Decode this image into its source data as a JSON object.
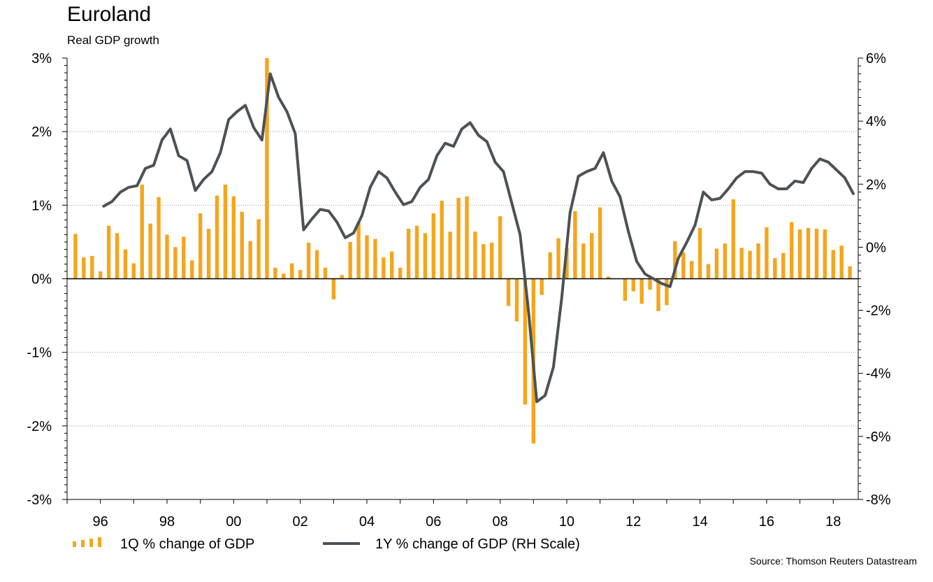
{
  "title": "Euroland",
  "subtitle": "Real GDP growth",
  "source": "Source: Thomson Reuters Datastream",
  "colors": {
    "bar": "#F5A51C",
    "line": "#4B5257",
    "grid": "#9A9A9A"
  },
  "chart_data": {
    "type": "bar+line",
    "title": "Euroland",
    "subtitle": "Real GDP growth",
    "x_range": [
      1995.0,
      2018.75
    ],
    "x_tick_values": [
      1996,
      1998,
      2000,
      2002,
      2004,
      2006,
      2008,
      2010,
      2012,
      2014,
      2016,
      2018
    ],
    "x_tick_labels": [
      "96",
      "98",
      "00",
      "02",
      "04",
      "06",
      "08",
      "10",
      "12",
      "14",
      "16",
      "18"
    ],
    "y_left_range": [
      -3,
      3
    ],
    "y_left_ticks": [
      "3%",
      "2%",
      "1%",
      "0%",
      "-1%",
      "-2%",
      "-3%"
    ],
    "y_right_range": [
      -8,
      6
    ],
    "y_right_ticks": [
      "6%",
      "4%",
      "2%",
      "0%",
      "-2%",
      "-4%",
      "-6%",
      "-8%"
    ],
    "grid": true,
    "legend_placement": "bottom-left",
    "series": [
      {
        "name": "1Q % change of GDP",
        "type": "bar",
        "axis": "left",
        "start": 1995.25,
        "step": 0.25,
        "values": [
          0.61,
          0.29,
          0.31,
          0.1,
          0.72,
          0.62,
          0.4,
          0.21,
          1.28,
          0.75,
          1.11,
          0.6,
          0.43,
          0.57,
          0.25,
          0.89,
          0.68,
          1.13,
          1.28,
          1.12,
          0.91,
          0.51,
          0.81,
          3.0,
          0.15,
          0.07,
          0.21,
          0.12,
          0.49,
          0.39,
          0.15,
          -0.28,
          0.05,
          0.5,
          0.77,
          0.59,
          0.54,
          0.29,
          0.37,
          0.15,
          0.68,
          0.72,
          0.62,
          0.89,
          1.06,
          0.64,
          1.1,
          1.12,
          0.64,
          0.47,
          0.49,
          0.85,
          -0.37,
          -0.58,
          -1.71,
          -2.24,
          -0.22,
          0.36,
          0.55,
          0.42,
          0.92,
          0.48,
          0.62,
          0.97,
          0.03,
          0.0,
          -0.3,
          -0.17,
          -0.34,
          -0.15,
          -0.44,
          -0.36,
          0.51,
          0.36,
          0.24,
          0.69,
          0.2,
          0.41,
          0.48,
          1.08,
          0.42,
          0.38,
          0.48,
          0.7,
          0.28,
          0.35,
          0.77,
          0.67,
          0.69,
          0.68,
          0.67,
          0.39,
          0.45,
          0.17
        ]
      },
      {
        "name": "1Y % change of GDP (RH Scale)",
        "type": "line",
        "axis": "right",
        "points": [
          [
            1996.1,
            1.3
          ],
          [
            1996.35,
            1.45
          ],
          [
            1996.6,
            1.75
          ],
          [
            1996.85,
            1.9
          ],
          [
            1997.1,
            1.95
          ],
          [
            1997.35,
            2.5
          ],
          [
            1997.6,
            2.6
          ],
          [
            1997.85,
            3.4
          ],
          [
            1998.1,
            3.75
          ],
          [
            1998.35,
            2.9
          ],
          [
            1998.6,
            2.75
          ],
          [
            1998.85,
            1.8
          ],
          [
            1999.1,
            2.15
          ],
          [
            1999.35,
            2.4
          ],
          [
            1999.6,
            3.0
          ],
          [
            1999.85,
            4.05
          ],
          [
            2000.1,
            4.3
          ],
          [
            2000.35,
            4.5
          ],
          [
            2000.6,
            3.8
          ],
          [
            2000.85,
            3.4
          ],
          [
            2001.1,
            5.5
          ],
          [
            2001.35,
            4.75
          ],
          [
            2001.6,
            4.3
          ],
          [
            2001.85,
            3.6
          ],
          [
            2002.1,
            0.55
          ],
          [
            2002.35,
            0.9
          ],
          [
            2002.6,
            1.2
          ],
          [
            2002.85,
            1.15
          ],
          [
            2003.1,
            0.8
          ],
          [
            2003.35,
            0.3
          ],
          [
            2003.6,
            0.45
          ],
          [
            2003.85,
            1.0
          ],
          [
            2004.1,
            1.9
          ],
          [
            2004.35,
            2.4
          ],
          [
            2004.6,
            2.2
          ],
          [
            2004.85,
            1.75
          ],
          [
            2005.1,
            1.35
          ],
          [
            2005.35,
            1.45
          ],
          [
            2005.6,
            1.9
          ],
          [
            2005.85,
            2.15
          ],
          [
            2006.1,
            2.9
          ],
          [
            2006.35,
            3.3
          ],
          [
            2006.6,
            3.2
          ],
          [
            2006.85,
            3.75
          ],
          [
            2007.1,
            3.95
          ],
          [
            2007.35,
            3.55
          ],
          [
            2007.6,
            3.35
          ],
          [
            2007.85,
            2.7
          ],
          [
            2008.1,
            2.4
          ],
          [
            2008.35,
            1.4
          ],
          [
            2008.6,
            0.4
          ],
          [
            2008.85,
            -2.0
          ],
          [
            2009.1,
            -4.9
          ],
          [
            2009.35,
            -4.7
          ],
          [
            2009.6,
            -3.8
          ],
          [
            2009.85,
            -1.6
          ],
          [
            2010.1,
            1.1
          ],
          [
            2010.35,
            2.25
          ],
          [
            2010.6,
            2.4
          ],
          [
            2010.85,
            2.5
          ],
          [
            2011.1,
            3.0
          ],
          [
            2011.35,
            2.1
          ],
          [
            2011.6,
            1.6
          ],
          [
            2011.85,
            0.5
          ],
          [
            2012.1,
            -0.45
          ],
          [
            2012.35,
            -0.85
          ],
          [
            2012.6,
            -1.0
          ],
          [
            2012.85,
            -1.15
          ],
          [
            2013.1,
            -1.25
          ],
          [
            2013.35,
            -0.35
          ],
          [
            2013.6,
            0.15
          ],
          [
            2013.85,
            0.7
          ],
          [
            2014.1,
            1.75
          ],
          [
            2014.35,
            1.5
          ],
          [
            2014.6,
            1.55
          ],
          [
            2014.85,
            1.85
          ],
          [
            2015.1,
            2.2
          ],
          [
            2015.35,
            2.4
          ],
          [
            2015.6,
            2.4
          ],
          [
            2015.85,
            2.35
          ],
          [
            2016.1,
            2.0
          ],
          [
            2016.35,
            1.85
          ],
          [
            2016.6,
            1.85
          ],
          [
            2016.85,
            2.1
          ],
          [
            2017.1,
            2.05
          ],
          [
            2017.35,
            2.5
          ],
          [
            2017.6,
            2.8
          ],
          [
            2017.85,
            2.7
          ],
          [
            2018.1,
            2.45
          ],
          [
            2018.35,
            2.2
          ],
          [
            2018.6,
            1.7
          ]
        ]
      }
    ]
  }
}
